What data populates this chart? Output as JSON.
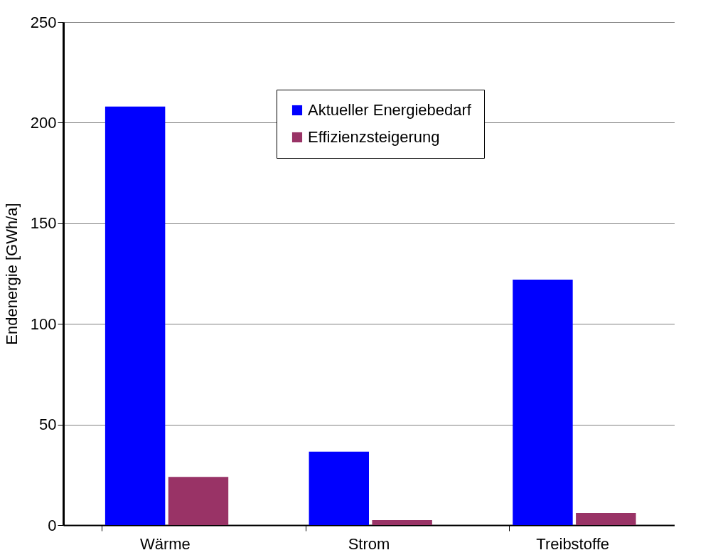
{
  "chart_data": {
    "type": "bar",
    "ylabel": "Endenergie [GWh/a]",
    "categories": [
      "Wärme",
      "Strom",
      "Treibstoffe"
    ],
    "series": [
      {
        "name": "Aktueller Energiebedarf",
        "color": "#0000ff",
        "values": [
          208,
          36.5,
          122
        ]
      },
      {
        "name": "Effizienzsteigerung",
        "color": "#993366",
        "values": [
          24,
          2.5,
          6
        ]
      }
    ],
    "ylim": [
      0,
      250
    ],
    "yticks": [
      0,
      50,
      100,
      150,
      200,
      250
    ],
    "grid": "y",
    "legend": "top right"
  }
}
